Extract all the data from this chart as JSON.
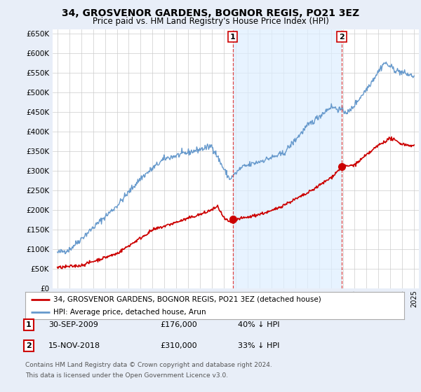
{
  "title": "34, GROSVENOR GARDENS, BOGNOR REGIS, PO21 3EZ",
  "subtitle": "Price paid vs. HM Land Registry's House Price Index (HPI)",
  "legend_line1": "34, GROSVENOR GARDENS, BOGNOR REGIS, PO21 3EZ (detached house)",
  "legend_line2": "HPI: Average price, detached house, Arun",
  "annotation1": {
    "num": "1",
    "date": "30-SEP-2009",
    "price": "£176,000",
    "pct": "40% ↓ HPI"
  },
  "annotation2": {
    "num": "2",
    "date": "15-NOV-2018",
    "price": "£310,000",
    "pct": "33% ↓ HPI"
  },
  "footnote1": "Contains HM Land Registry data © Crown copyright and database right 2024.",
  "footnote2": "This data is licensed under the Open Government Licence v3.0.",
  "hpi_color": "#6699cc",
  "price_color": "#cc0000",
  "background_color": "#e8eef8",
  "plot_bg_color": "#ffffff",
  "shade_color": "#ddeeff",
  "vline_color": "#dd4444",
  "ylim": [
    0,
    660000
  ],
  "ytick_step": 50000,
  "marker1_x": 2009.75,
  "marker1_y": 176000,
  "marker2_x": 2018.917,
  "marker2_y": 310000,
  "xlim_left": 1994.6,
  "xlim_right": 2025.4
}
